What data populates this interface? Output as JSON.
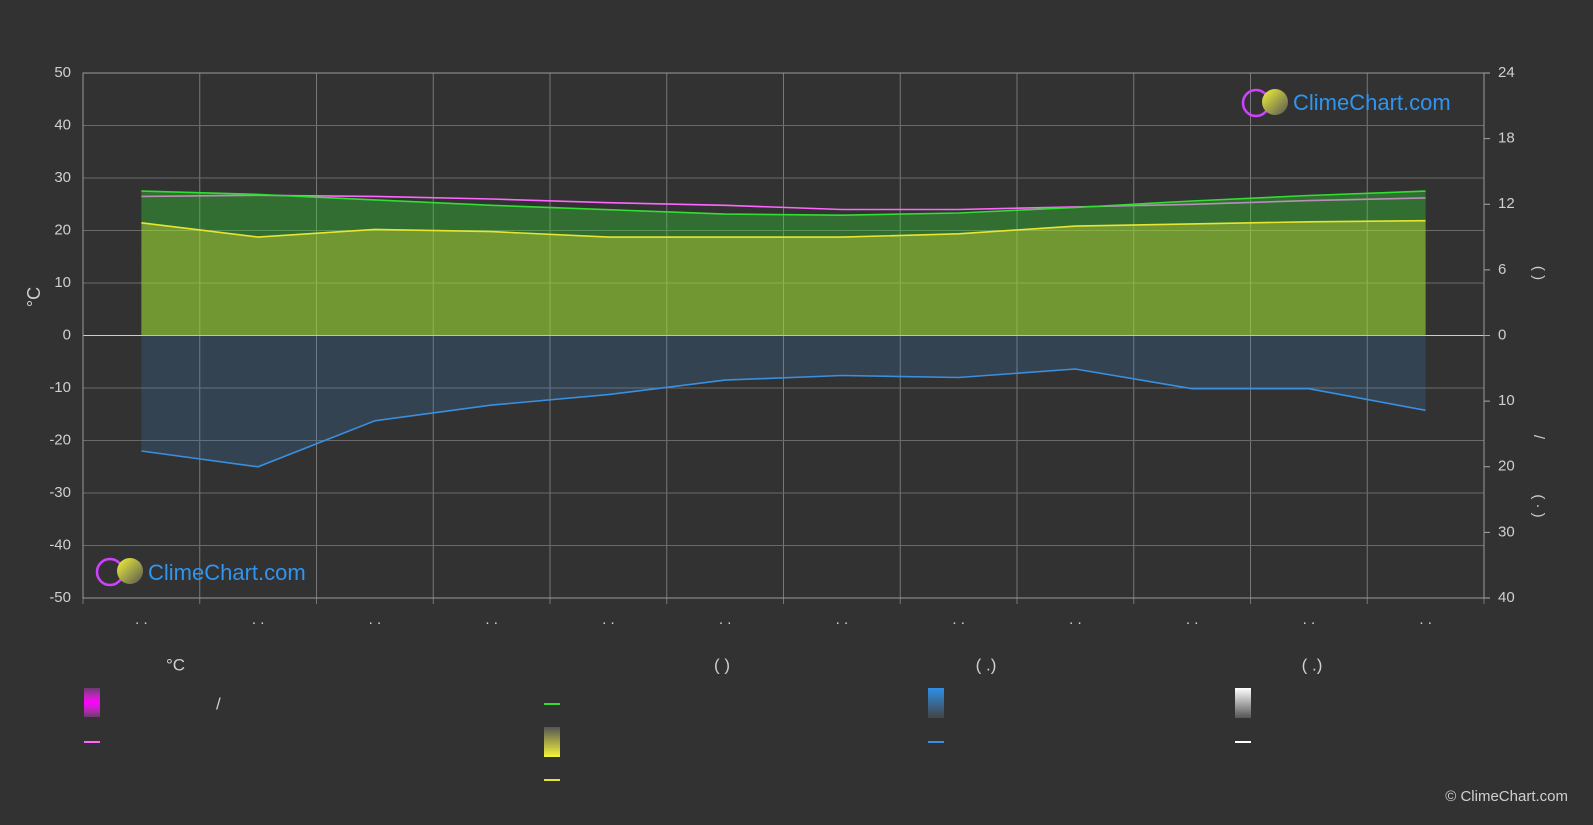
{
  "chart_data": {
    "type": "line",
    "y_axis_label": "°C",
    "y2_axis_labels": [
      "(      )",
      "/",
      "(  ·  )"
    ],
    "categories": [
      ". .",
      ". .",
      ". .",
      ". .",
      ". .",
      ". .",
      ". .",
      ". .",
      ". .",
      ". .",
      ". .",
      ". ."
    ],
    "ylim": [
      -50,
      50
    ],
    "yticks": [
      -50,
      -40,
      -30,
      -20,
      -10,
      0,
      10,
      20,
      30,
      40,
      50
    ],
    "y2lim": [
      0,
      24
    ],
    "y2ticks": [
      0,
      6,
      12,
      18,
      24
    ],
    "y3lim": [
      0,
      40
    ],
    "y3ticks": [
      10,
      20,
      30,
      40
    ],
    "grid": true,
    "series": [
      {
        "color": "#ff66ff",
        "axis": "y",
        "values": [
          26.5,
          26.7,
          26.5,
          26.0,
          25.3,
          24.8,
          24.0,
          24.0,
          24.5,
          25.0,
          25.7,
          26.2
        ]
      },
      {
        "color": "#33dd33",
        "axis": "y2",
        "values": [
          13.2,
          12.9,
          12.4,
          11.9,
          11.5,
          11.1,
          11.0,
          11.2,
          11.7,
          12.3,
          12.8,
          13.2
        ]
      },
      {
        "color": "#e6e632",
        "axis": "y2",
        "values": [
          10.3,
          9.0,
          9.7,
          9.5,
          9.0,
          9.0,
          9.0,
          9.3,
          10.0,
          10.2,
          10.4,
          10.5
        ]
      },
      {
        "color": "#3a8fe0",
        "axis": "y3",
        "values": [
          17.6,
          20.0,
          13.0,
          10.6,
          9.0,
          6.8,
          6.1,
          6.4,
          5.1,
          8.1,
          8.1,
          11.4
        ]
      }
    ],
    "legend": {
      "headers": [
        "°C",
        "(          )",
        "(   .)",
        "(   .)"
      ],
      "slash": "/"
    },
    "logo_text": "ClimeChart.com",
    "copyright": "© ClimeChart.com"
  }
}
